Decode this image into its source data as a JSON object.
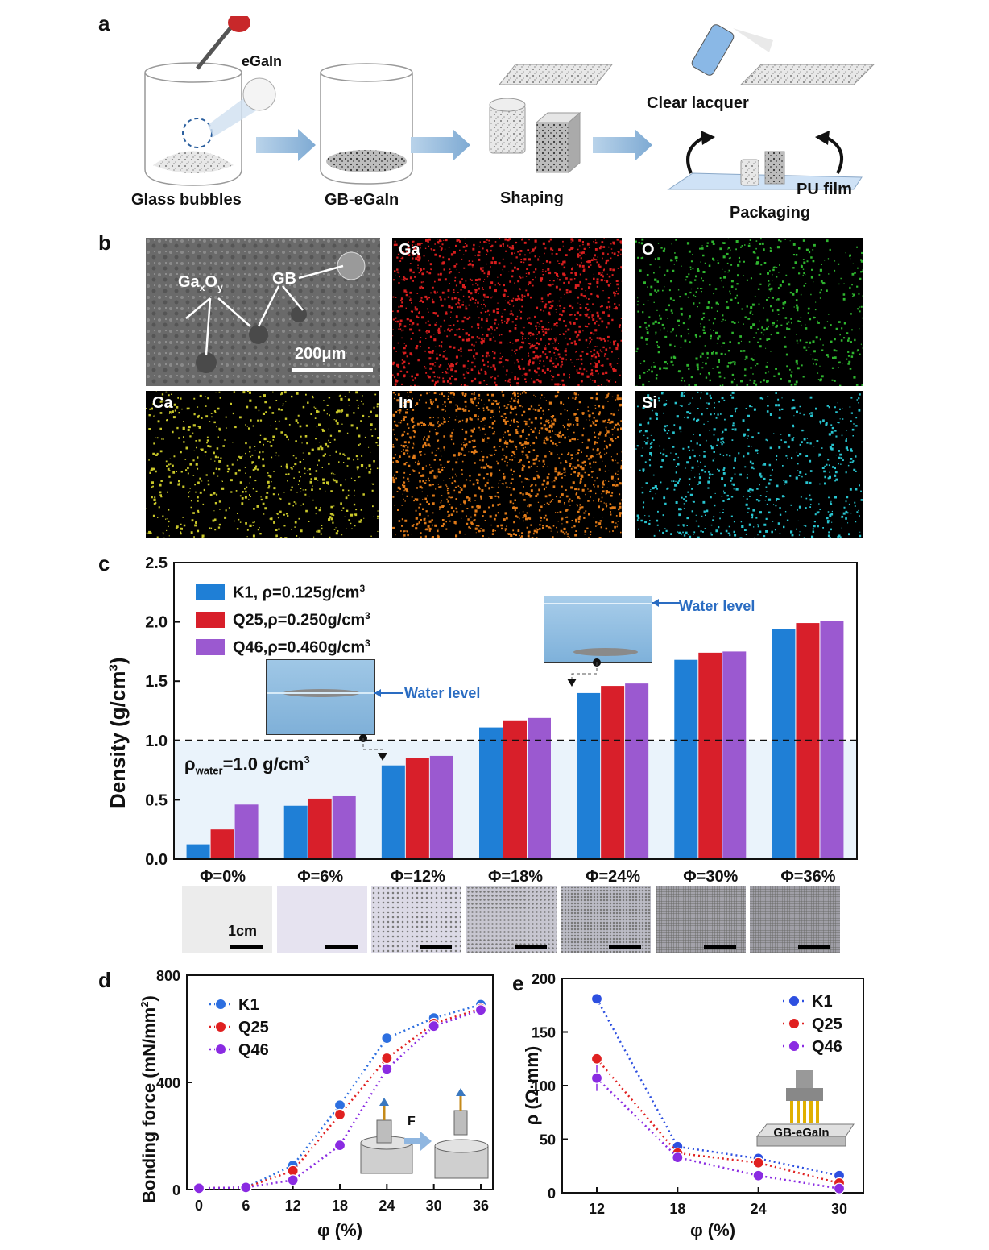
{
  "panel_labels": {
    "a": "a",
    "b": "b",
    "c": "c",
    "d": "d",
    "e": "e"
  },
  "panel_a": {
    "dropper_label": "eGaIn",
    "steps": [
      "Glass bubbles",
      "GB-eGaIn",
      "Shaping",
      "Packaging"
    ],
    "clear_lacquer": "Clear lacquer",
    "pu_film": "PU film"
  },
  "panel_b": {
    "sem": {
      "ga_x": "Ga",
      "x_sub": "x",
      "o": "O",
      "y_sub": "y",
      "gb": "GB",
      "scale": "200μm"
    },
    "maps": [
      {
        "element": "Ga",
        "color": "#d81e1e"
      },
      {
        "element": "O",
        "color": "#2fb52f"
      },
      {
        "element": "Ca",
        "color": "#c9c72a"
      },
      {
        "element": "In",
        "color": "#e07a18"
      },
      {
        "element": "Si",
        "color": "#28c4cf"
      }
    ]
  },
  "panel_c": {
    "ylabel": "Density (g/cm",
    "ylabel_sup": "3",
    "ylabel_end": ")",
    "water_text_main": "ρ",
    "water_text_sub": "water",
    "water_text_value": "=1.0 g/cm",
    "water_text_sup": "3",
    "water_level": "Water level",
    "scale_label": "1cm",
    "legend": [
      {
        "label": "K1,  ρ=0.125g/cm",
        "sup": "3"
      },
      {
        "label": "Q25,ρ=0.250g/cm",
        "sup": "3"
      },
      {
        "label": "Q46,ρ=0.460g/cm",
        "sup": "3"
      }
    ]
  },
  "panel_d": {
    "ylabel": "Bonding force (mN/mm",
    "ylabel_sup": "2",
    "ylabel_end": ")",
    "xlabel": "φ (%)",
    "force_label": "F"
  },
  "panel_e": {
    "ylabel": "ρ (Ω·mm)",
    "xlabel": "φ (%)",
    "device_label": "GB-eGaIn"
  },
  "chart_data": [
    {
      "type": "bar",
      "id": "c",
      "categories": [
        "Φ=0%",
        "Φ=6%",
        "Φ=12%",
        "Φ=18%",
        "Φ=24%",
        "Φ=30%",
        "Φ=36%"
      ],
      "series": [
        {
          "name": "K1",
          "color": "#1f7fd6",
          "values": [
            0.125,
            0.45,
            0.79,
            1.11,
            1.4,
            1.68,
            1.94
          ]
        },
        {
          "name": "Q25",
          "color": "#d81f2a",
          "values": [
            0.25,
            0.51,
            0.85,
            1.17,
            1.46,
            1.74,
            1.99
          ]
        },
        {
          "name": "Q46",
          "color": "#9b59d0",
          "values": [
            0.46,
            0.53,
            0.87,
            1.19,
            1.48,
            1.75,
            2.01
          ]
        }
      ],
      "ylim": [
        0,
        2.5
      ],
      "yticks": [
        "0.0",
        "0.5",
        "1.0",
        "1.5",
        "2.0",
        "2.5"
      ],
      "reference_line": 1.0
    },
    {
      "type": "scatter",
      "id": "d",
      "x": [
        0,
        6,
        12,
        18,
        24,
        30,
        36
      ],
      "xticks": [
        "0",
        "6",
        "12",
        "18",
        "24",
        "30",
        "36"
      ],
      "series": [
        {
          "name": "K1",
          "color": "#2d6fe0",
          "values": [
            5,
            8,
            90,
            315,
            565,
            640,
            690
          ]
        },
        {
          "name": "Q25",
          "color": "#e02020",
          "values": [
            5,
            8,
            70,
            280,
            490,
            620,
            675
          ]
        },
        {
          "name": "Q46",
          "color": "#8a2be2",
          "values": [
            5,
            8,
            35,
            165,
            450,
            610,
            670
          ]
        }
      ],
      "ylim": [
        0,
        800
      ],
      "yticks": [
        "0",
        "400",
        "800"
      ]
    },
    {
      "type": "scatter",
      "id": "e",
      "x": [
        12,
        18,
        24,
        30
      ],
      "xticks": [
        "12",
        "18",
        "24",
        "30"
      ],
      "series": [
        {
          "name": "K1",
          "color": "#2d4fe0",
          "values": [
            181,
            43,
            32,
            16
          ],
          "errors": [
            4,
            3,
            2,
            2
          ]
        },
        {
          "name": "Q25",
          "color": "#e02020",
          "values": [
            125,
            37,
            28,
            9
          ],
          "errors": [
            3,
            3,
            2,
            2
          ]
        },
        {
          "name": "Q46",
          "color": "#8a2be2",
          "values": [
            107,
            33,
            16,
            4
          ],
          "errors": [
            12,
            3,
            2,
            2
          ]
        }
      ],
      "ylim": [
        0,
        200
      ],
      "yticks": [
        "0",
        "50",
        "100",
        "150",
        "200"
      ]
    }
  ]
}
